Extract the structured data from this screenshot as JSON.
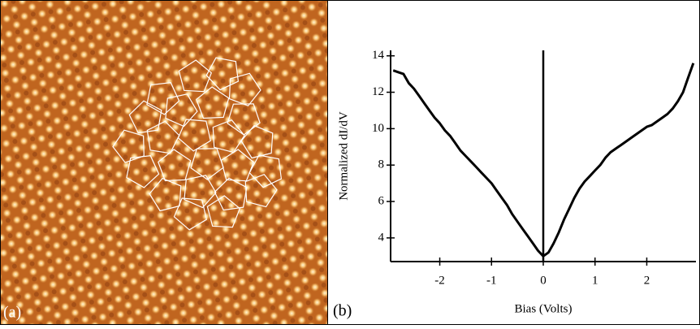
{
  "image_panel": {
    "label": "(a)"
  },
  "chart_data": {
    "type": "line",
    "panel_label": "(b)",
    "x_label": "Bias (Volts)",
    "y_label": "Normalized dI/dV",
    "x": [
      -2.9,
      -2.8,
      -2.7,
      -2.6,
      -2.5,
      -2.4,
      -2.3,
      -2.2,
      -2.1,
      -2.0,
      -1.9,
      -1.8,
      -1.7,
      -1.6,
      -1.5,
      -1.4,
      -1.3,
      -1.2,
      -1.1,
      -1.0,
      -0.9,
      -0.8,
      -0.7,
      -0.6,
      -0.5,
      -0.4,
      -0.3,
      -0.2,
      -0.1,
      0,
      0.1,
      0.2,
      0.3,
      0.4,
      0.5,
      0.6,
      0.7,
      0.8,
      0.9,
      1.0,
      1.1,
      1.2,
      1.3,
      1.4,
      1.5,
      1.6,
      1.7,
      1.8,
      1.9,
      2.0,
      2.1,
      2.2,
      2.3,
      2.4,
      2.5,
      2.6,
      2.7,
      2.8,
      2.9
    ],
    "series": [
      {
        "color": "#000000",
        "values": [
          13.2,
          13.1,
          13.0,
          12.5,
          12.2,
          11.8,
          11.4,
          11.0,
          10.6,
          10.3,
          9.9,
          9.6,
          9.2,
          8.8,
          8.5,
          8.2,
          7.9,
          7.6,
          7.3,
          7.0,
          6.6,
          6.2,
          5.8,
          5.3,
          4.9,
          4.5,
          4.1,
          3.7,
          3.3,
          3.0,
          3.2,
          3.7,
          4.3,
          5.0,
          5.6,
          6.2,
          6.7,
          7.1,
          7.4,
          7.7,
          8.0,
          8.4,
          8.7,
          8.9,
          9.1,
          9.3,
          9.5,
          9.7,
          9.9,
          10.1,
          10.2,
          10.4,
          10.6,
          10.8,
          11.1,
          11.5,
          12.0,
          12.8,
          13.6
        ]
      }
    ],
    "vline": 0,
    "xlim": [
      -2.95,
      2.95
    ],
    "ylim": [
      2.7,
      14.3
    ],
    "xticks": [
      -2,
      -1,
      0,
      1,
      2
    ],
    "yticks": [
      4,
      6,
      8,
      10,
      12,
      14
    ]
  }
}
